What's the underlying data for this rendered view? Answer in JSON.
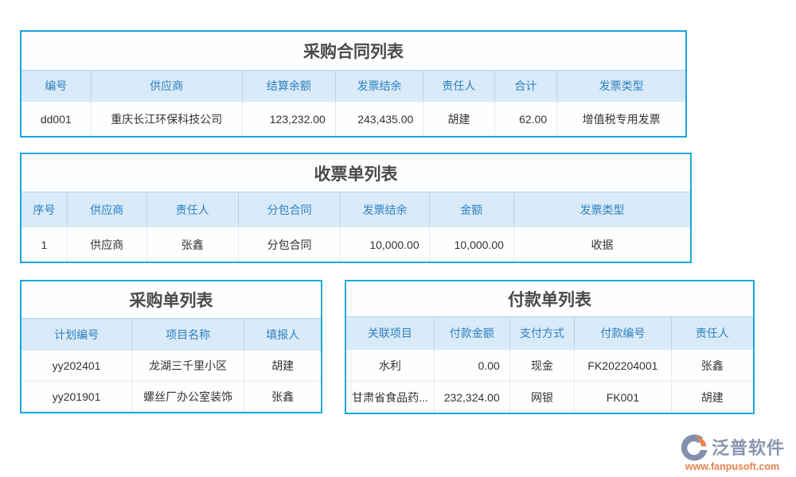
{
  "tables": {
    "purchase_contract": {
      "title": "采购合同列表",
      "headers": [
        "编号",
        "供应商",
        "结算余额",
        "发票结余",
        "责任人",
        "合计",
        "发票类型"
      ],
      "rows": [
        [
          "dd001",
          "重庆长江环保科技公司",
          "123,232.00",
          "243,435.00",
          "胡建",
          "62.00",
          "增值税专用发票"
        ]
      ]
    },
    "receipt": {
      "title": "收票单列表",
      "headers": [
        "序号",
        "供应商",
        "责任人",
        "分包合同",
        "发票结余",
        "金额",
        "发票类型"
      ],
      "rows": [
        [
          "1",
          "供应商",
          "张鑫",
          "分包合同",
          "10,000.00",
          "10,000.00",
          "收据"
        ]
      ]
    },
    "purchase_order": {
      "title": "采购单列表",
      "headers": [
        "计划编号",
        "项目名称",
        "填报人"
      ],
      "rows": [
        [
          "yy202401",
          "龙湖三千里小区",
          "胡建"
        ],
        [
          "yy201901",
          "螺丝厂办公室装饰",
          "张鑫"
        ]
      ]
    },
    "payment": {
      "title": "付款单列表",
      "headers": [
        "关联项目",
        "付款金额",
        "支付方式",
        "付款编号",
        "责任人"
      ],
      "rows": [
        [
          "水利",
          "0.00",
          "现金",
          "FK202204001",
          "张鑫"
        ],
        [
          "甘肃省食品药...",
          "232,324.00",
          "网银",
          "FK001",
          "胡建"
        ]
      ]
    }
  },
  "branding": {
    "logo_text": "泛普软件",
    "logo_url": "www.fanpusoft.com"
  },
  "colors": {
    "panel_border": "#18a7e0",
    "header_bg": "#d9eaf8",
    "header_text": "#2e81c0",
    "title_text": "#4a4a4a",
    "body_text": "#333333",
    "logo_text": "#8995ae",
    "logo_orange": "#e8824f"
  }
}
